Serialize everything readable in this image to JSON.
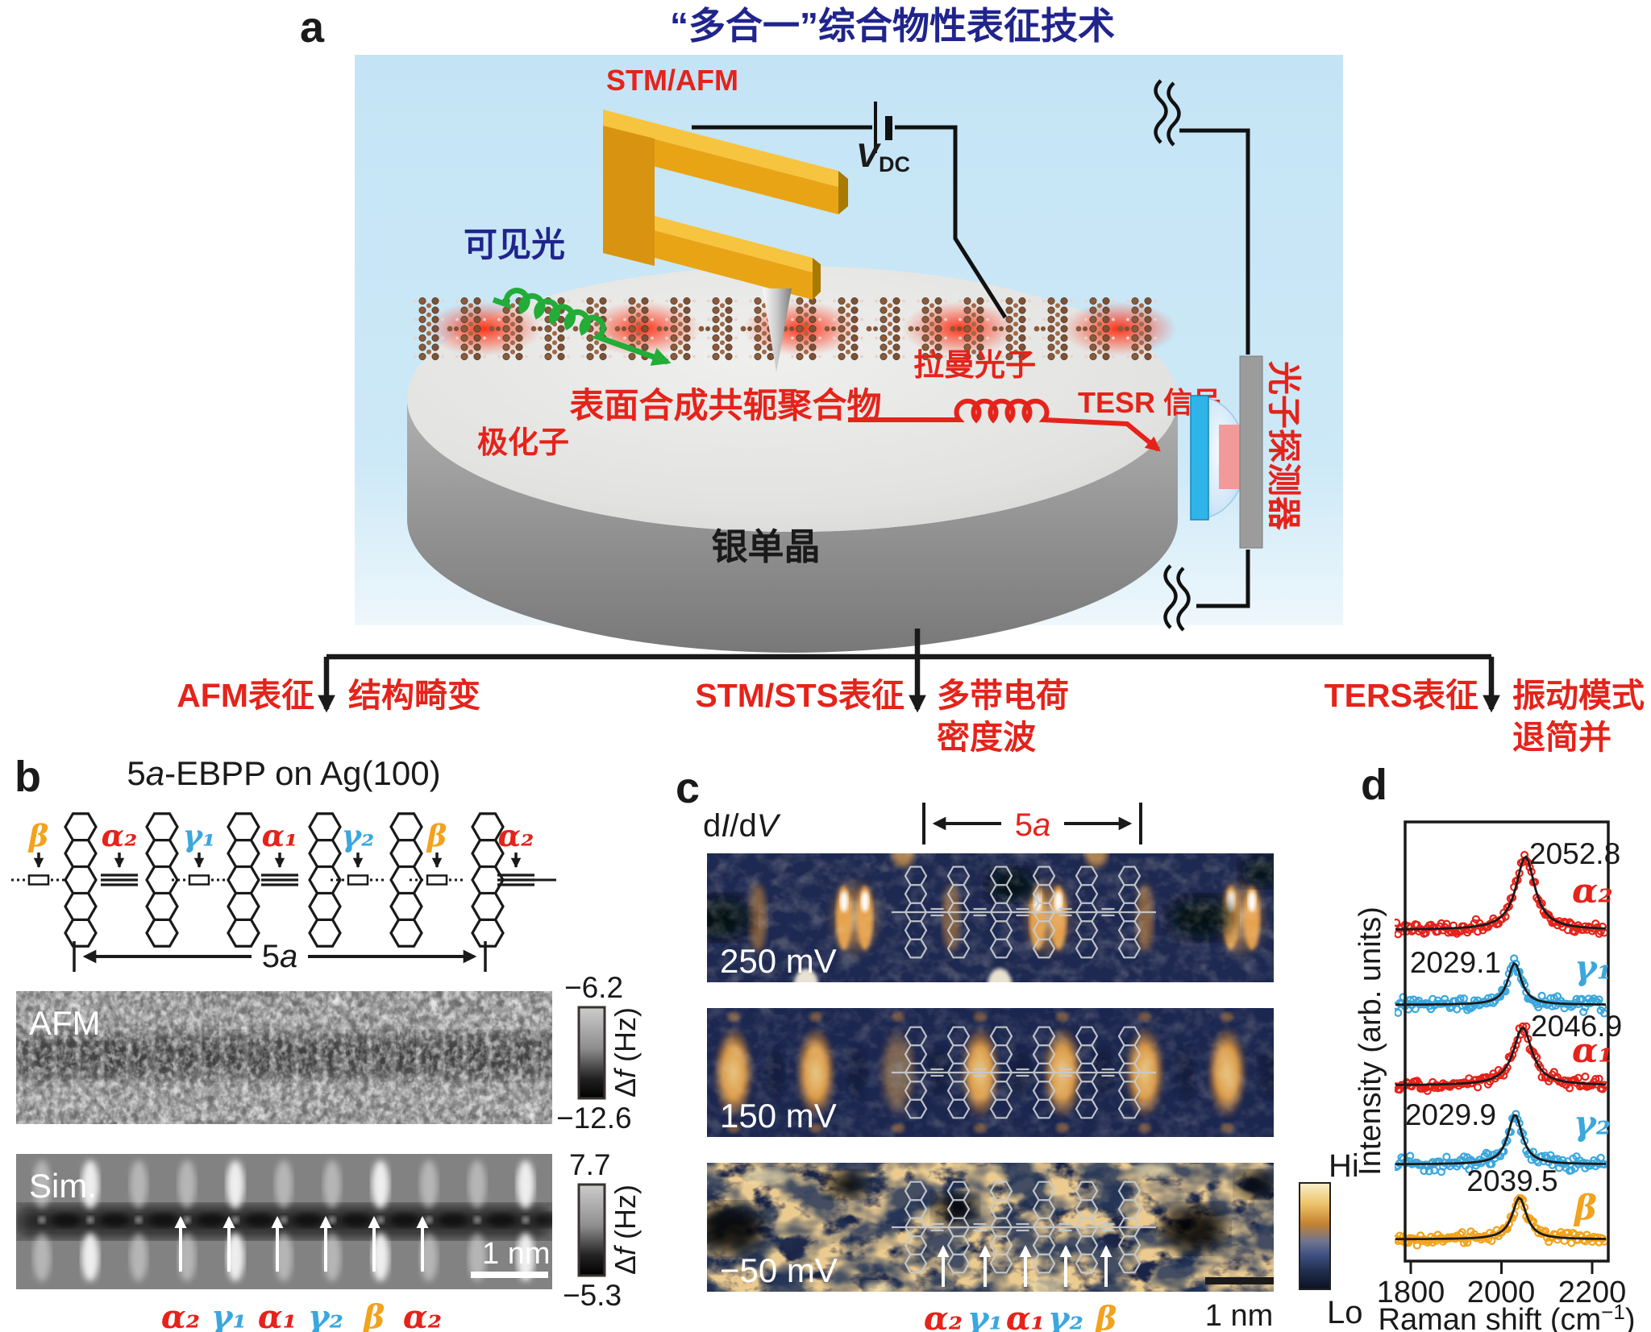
{
  "colors": {
    "accent_red": "#e5231b",
    "cyan": "#3ba7dd",
    "orange": "#f2a21c",
    "navy": "#20248c",
    "green": "#22ac38",
    "gold": "#e9a416",
    "panel_bg_blue": "#c7e6f6",
    "map_navy": "#1e2951",
    "black": "#1a1a1a"
  },
  "panel_a": {
    "label": "a",
    "title": "“多合一”综合物性表征技术",
    "stm_afm": "STM/AFM",
    "vdc": {
      "base": "V",
      "sub": "DC"
    },
    "visible_light": "可见光",
    "polaron": "极化子",
    "raman_photon": "拉曼光子",
    "tesr_signal": "TESR 信号",
    "photon_detector": "光子探测器",
    "polymer_label": "表面合成共轭聚合物",
    "crystal_label": "银单晶"
  },
  "branches": [
    {
      "method": "AFM表征",
      "result_line1": "结构畸变",
      "result_line2": ""
    },
    {
      "method": "STM/STS表征",
      "result_line1": "多带电荷",
      "result_line2": "密度波"
    },
    {
      "method": "TERS表征",
      "result_line1": "振动模式",
      "result_line2": "退简并"
    }
  ],
  "panel_b": {
    "label": "b",
    "title": {
      "num": "5",
      "italic": "a",
      "rest": "-EBPP on Ag(100)"
    },
    "bond_labels": [
      {
        "text": "β",
        "color": "#f2a21c"
      },
      {
        "text": "α₂",
        "color": "#e5231b"
      },
      {
        "text": "γ₁",
        "color": "#3ba7dd"
      },
      {
        "text": "α₁",
        "color": "#e5231b"
      },
      {
        "text": "γ₂",
        "color": "#3ba7dd"
      },
      {
        "text": "β",
        "color": "#f2a21c"
      },
      {
        "text": "α₂",
        "color": "#e5231b"
      }
    ],
    "span": {
      "num": "5",
      "italic": "a"
    },
    "afm": {
      "label": "AFM",
      "scale_top": "−6.2",
      "scale_bottom": "−12.6"
    },
    "sim": {
      "label": "Sim.",
      "scale_top": "7.7",
      "scale_bottom": "−5.3"
    },
    "freq_unit": {
      "delta": "Δ",
      "f": "f",
      "rest": " (Hz)"
    },
    "scalebar": "1 nm",
    "arrow_labels": [
      {
        "text": "α₂",
        "color": "#e5231b"
      },
      {
        "text": "γ₁",
        "color": "#3ba7dd"
      },
      {
        "text": "α₁",
        "color": "#e5231b"
      },
      {
        "text": "γ₂",
        "color": "#3ba7dd"
      },
      {
        "text": "β",
        "color": "#f2a21c"
      },
      {
        "text": "α₂",
        "color": "#e5231b"
      }
    ]
  },
  "panel_c": {
    "label": "c",
    "didv": {
      "d1": "d",
      "i": "I",
      "d2": "/d",
      "v": "V"
    },
    "span": {
      "num": "5",
      "italic": "a"
    },
    "maps": [
      {
        "bias": "250 mV"
      },
      {
        "bias": "150 mV"
      },
      {
        "bias": "−50 mV"
      }
    ],
    "arrow_labels": [
      {
        "text": "α₂",
        "color": "#e5231b"
      },
      {
        "text": "γ₁",
        "color": "#3ba7dd"
      },
      {
        "text": "α₁",
        "color": "#e5231b"
      },
      {
        "text": "γ₂",
        "color": "#3ba7dd"
      },
      {
        "text": "β",
        "color": "#f2a21c"
      }
    ],
    "scalebar": "1 nm",
    "colorbar_hi": "Hi",
    "colorbar_lo": "Lo"
  },
  "panel_d": {
    "label": "d",
    "ylabel": "Intensity (arb. units)",
    "xlabel": {
      "pre": "Raman shift (cm",
      "sup": "−1",
      "post": ")"
    },
    "xticks": [
      "1800",
      "2000",
      "2200"
    ]
  },
  "chart_data": {
    "type": "scatter",
    "xlabel": "Raman shift (cm⁻¹)",
    "ylabel": "Intensity (arb. units)",
    "xlim": [
      1787,
      2234
    ],
    "xtick_values": [
      1800,
      2000,
      2200
    ],
    "grid": false,
    "fit_model": "Lorentzian",
    "fit_color": "#1a1a1a",
    "marker": "open-circle",
    "series": [
      {
        "name": "α₂",
        "color": "#e5231b",
        "peak_center": 2052.8,
        "peak_label": "2052.8",
        "label_side": "right",
        "rel_amplitude": 1.0,
        "hwhm_cm": 25
      },
      {
        "name": "γ₁",
        "color": "#3ba7dd",
        "peak_center": 2029.1,
        "peak_label": "2029.1",
        "label_side": "left",
        "rel_amplitude": 0.57,
        "hwhm_cm": 18
      },
      {
        "name": "α₁",
        "color": "#e5231b",
        "peak_center": 2046.9,
        "peak_label": "2046.9",
        "label_side": "right",
        "rel_amplitude": 0.79,
        "hwhm_cm": 25
      },
      {
        "name": "γ₂",
        "color": "#3ba7dd",
        "peak_center": 2029.9,
        "peak_label": "2029.9",
        "label_side": "left",
        "rel_amplitude": 0.68,
        "hwhm_cm": 19
      },
      {
        "name": "β",
        "color": "#f2a21c",
        "peak_center": 2039.5,
        "peak_label": "2039.5",
        "label_side": "center",
        "rel_amplitude": 0.57,
        "hwhm_cm": 19
      }
    ]
  }
}
